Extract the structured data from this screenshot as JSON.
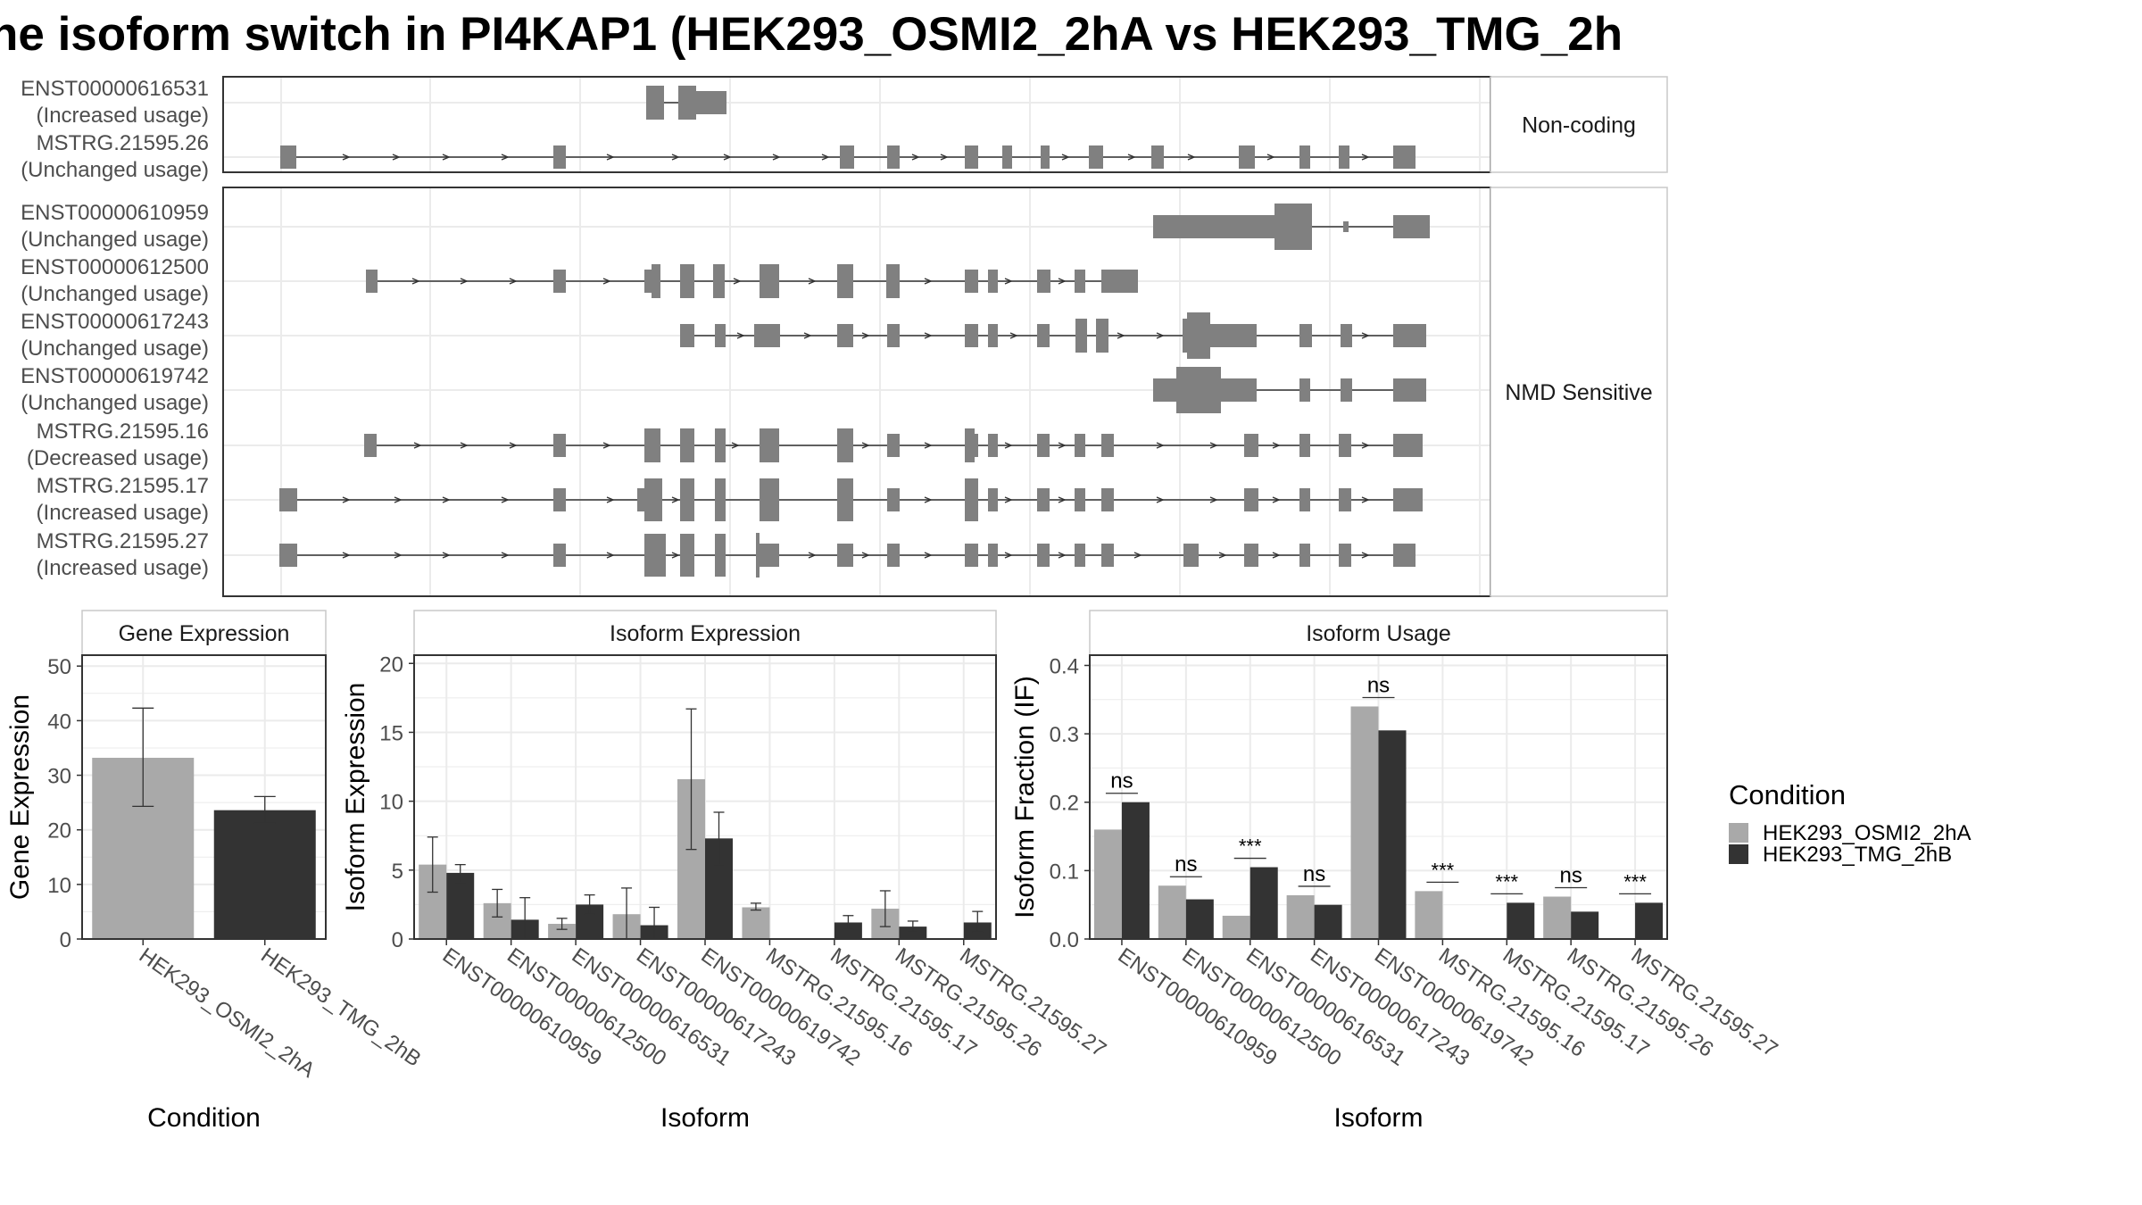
{
  "chart_data": {
    "title": "ne isoform switch in PI4KAP1 (HEK293_OSMI2_2hA vs HEK293_TMG_2h",
    "transcripts": {
      "type": "gene-model",
      "facets": [
        "Non-coding",
        "NMD Sensitive"
      ],
      "tracks": [
        {
          "facet": 0,
          "id": "ENST00000616531",
          "status": "(Increased usage)"
        },
        {
          "facet": 0,
          "id": "MSTRG.21595.26",
          "status": "(Unchanged usage)"
        },
        {
          "facet": 1,
          "id": "ENST00000610959",
          "status": "(Unchanged usage)"
        },
        {
          "facet": 1,
          "id": "ENST00000612500",
          "status": "(Unchanged usage)"
        },
        {
          "facet": 1,
          "id": "ENST00000617243",
          "status": "(Unchanged usage)"
        },
        {
          "facet": 1,
          "id": "ENST00000619742",
          "status": "(Unchanged usage)"
        },
        {
          "facet": 1,
          "id": "MSTRG.21595.16",
          "status": "(Decreased usage)"
        },
        {
          "facet": 1,
          "id": "MSTRG.21595.17",
          "status": "(Increased usage)"
        },
        {
          "facet": 1,
          "id": "MSTRG.21595.27",
          "status": "(Increased usage)"
        }
      ]
    },
    "gene_expression": {
      "type": "bar",
      "strip": "Gene Expression",
      "xlabel": "Condition",
      "ylabel": "Gene Expression",
      "ylim": [
        0,
        52
      ],
      "yticks": [
        0,
        10,
        20,
        30,
        40,
        50
      ],
      "categories": [
        "HEK293_OSMI2_2hA",
        "HEK293_TMG_2hB"
      ],
      "values": [
        33.2,
        23.6
      ],
      "err_low": [
        24.3,
        21.2
      ],
      "err_high": [
        42.3,
        26.1
      ]
    },
    "isoform_expression": {
      "type": "bar",
      "strip": "Isoform Expression",
      "xlabel": "Isoform",
      "ylabel": "Isoform Expression",
      "ylim": [
        0,
        20.6
      ],
      "yticks": [
        0,
        5,
        10,
        15,
        20
      ],
      "categories": [
        "ENST00000610959",
        "ENST00000612500",
        "ENST00000616531",
        "ENST00000617243",
        "ENST00000619742",
        "MSTRG.21595.16",
        "MSTRG.21595.17",
        "MSTRG.21595.26",
        "MSTRG.21595.27"
      ],
      "series": [
        {
          "name": "HEK293_OSMI2_2hA",
          "values": [
            5.4,
            2.6,
            1.1,
            1.8,
            11.6,
            2.3,
            0.0,
            2.2,
            0.0
          ],
          "err_low": [
            3.4,
            1.6,
            0.7,
            0.0,
            6.5,
            2.1,
            0.0,
            0.9,
            0.0
          ],
          "err_high": [
            7.4,
            3.6,
            1.5,
            3.7,
            16.7,
            2.6,
            0.0,
            3.5,
            0.0
          ]
        },
        {
          "name": "HEK293_TMG_2hB",
          "values": [
            4.8,
            1.4,
            2.5,
            1.0,
            7.3,
            0.0,
            1.2,
            0.9,
            1.2
          ],
          "err_low": [
            4.1,
            0.0,
            1.8,
            0.0,
            5.4,
            0.0,
            0.7,
            0.5,
            0.5
          ],
          "err_high": [
            5.4,
            3.0,
            3.2,
            2.3,
            9.2,
            0.0,
            1.7,
            1.3,
            2.0
          ]
        }
      ]
    },
    "isoform_usage": {
      "type": "bar",
      "strip": "Isoform Usage",
      "xlabel": "Isoform",
      "ylabel": "Isoform Fraction (IF)",
      "ylim": [
        0,
        0.415
      ],
      "yticks": [
        "0.0",
        "0.1",
        "0.2",
        "0.3",
        "0.4"
      ],
      "categories": [
        "ENST00000610959",
        "ENST00000612500",
        "ENST00000616531",
        "ENST00000617243",
        "ENST00000619742",
        "MSTRG.21595.16",
        "MSTRG.21595.17",
        "MSTRG.21595.26",
        "MSTRG.21595.27"
      ],
      "series": [
        {
          "name": "HEK293_OSMI2_2hA",
          "values": [
            0.16,
            0.078,
            0.034,
            0.064,
            0.34,
            0.07,
            0.0,
            0.062,
            0.0
          ]
        },
        {
          "name": "HEK293_TMG_2hB",
          "values": [
            0.2,
            0.058,
            0.105,
            0.05,
            0.305,
            0.0,
            0.053,
            0.04,
            0.053
          ]
        }
      ],
      "significance": [
        "ns",
        "ns",
        "***",
        "ns",
        "ns",
        "***",
        "***",
        "ns",
        "***"
      ]
    },
    "legend": {
      "title": "Condition",
      "items": [
        {
          "label": "HEK293_OSMI2_2hA",
          "color": "#a9a9a9"
        },
        {
          "label": "HEK293_TMG_2hB",
          "color": "#333333"
        }
      ]
    },
    "colors": {
      "light": "#a9a9a9",
      "dark": "#333333",
      "exon": "#808080",
      "grid": "#ebebeb",
      "strip_text": "#1a1a1a"
    }
  }
}
